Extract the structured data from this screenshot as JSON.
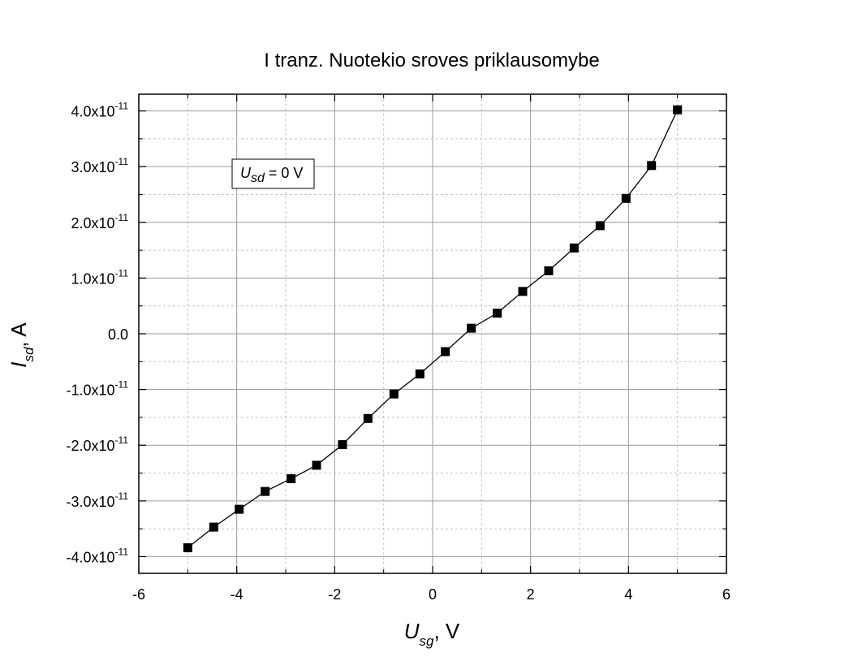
{
  "chart_data": {
    "type": "scatter",
    "title": "I tranz. Nuotekio sroves priklausomybe",
    "xlabel": {
      "main": "U",
      "sub": "sg",
      "suffix": ", V"
    },
    "ylabel": {
      "main": "I",
      "sub": "sd",
      "suffix": ", A"
    },
    "xlim": [
      -6,
      6
    ],
    "ylim": [
      -4.3e-11,
      4.3e-11
    ],
    "x_ticks": [
      -6,
      -4,
      -2,
      0,
      2,
      4,
      6
    ],
    "x_tick_labels": [
      "-6",
      "-4",
      "-2",
      "0",
      "2",
      "4",
      "6"
    ],
    "y_ticks": [
      4e-11,
      3e-11,
      2e-11,
      1e-11,
      0,
      -1e-11,
      -2e-11,
      -3e-11,
      -4e-11
    ],
    "y_tick_labels": [
      {
        "mant": "4.0x10",
        "exp": "-11"
      },
      {
        "mant": "3.0x10",
        "exp": "-11"
      },
      {
        "mant": "2.0x10",
        "exp": "-11"
      },
      {
        "mant": "1.0x10",
        "exp": "-11"
      },
      {
        "mant": "0.0",
        "exp": ""
      },
      {
        "mant": "-1.0x10",
        "exp": "-11"
      },
      {
        "mant": "-2.0x10",
        "exp": "-11"
      },
      {
        "mant": "-3.0x10",
        "exp": "-11"
      },
      {
        "mant": "-4.0x10",
        "exp": "-11"
      }
    ],
    "grid": true,
    "annotation": {
      "main": "U",
      "sub": "sd",
      "suffix": " = 0 V"
    },
    "series": [
      {
        "marker": "square",
        "color": "#000000",
        "points": [
          {
            "x": -5.0,
            "y": -3.84e-11
          },
          {
            "x": -4.47,
            "y": -3.47e-11
          },
          {
            "x": -3.95,
            "y": -3.15e-11
          },
          {
            "x": -3.42,
            "y": -2.83e-11
          },
          {
            "x": -2.89,
            "y": -2.6e-11
          },
          {
            "x": -2.37,
            "y": -2.36e-11
          },
          {
            "x": -1.84,
            "y": -1.99e-11
          },
          {
            "x": -1.32,
            "y": -1.52e-11
          },
          {
            "x": -0.79,
            "y": -1.08e-11
          },
          {
            "x": -0.26,
            "y": -7.2e-12
          },
          {
            "x": 0.26,
            "y": -3.2e-12
          },
          {
            "x": 0.79,
            "y": 1e-12
          },
          {
            "x": 1.32,
            "y": 3.7e-12
          },
          {
            "x": 1.84,
            "y": 7.6e-12
          },
          {
            "x": 2.37,
            "y": 1.13e-11
          },
          {
            "x": 2.89,
            "y": 1.54e-11
          },
          {
            "x": 3.42,
            "y": 1.94e-11
          },
          {
            "x": 3.95,
            "y": 2.43e-11
          },
          {
            "x": 4.47,
            "y": 3.02e-11
          },
          {
            "x": 5.0,
            "y": 4.02e-11
          }
        ]
      }
    ]
  }
}
